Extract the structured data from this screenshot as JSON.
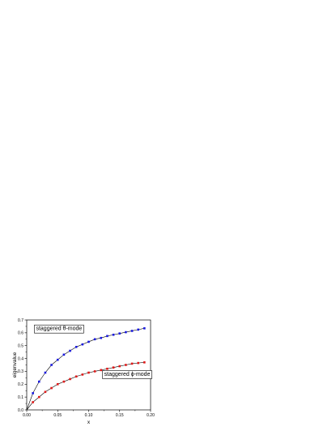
{
  "chart_data": {
    "type": "scatter",
    "xlabel": "x",
    "ylabel": "eigenvalue",
    "xlim": [
      0,
      0.2
    ],
    "ylim": [
      0,
      0.7
    ],
    "x_ticks": [
      "0.00",
      "0.05",
      "0.10",
      "0.15",
      "0.20"
    ],
    "y_ticks": [
      "0.0",
      "0.1",
      "0.2",
      "0.3",
      "0.4",
      "0.5",
      "0.6",
      "0.7"
    ],
    "grid": false,
    "series": [
      {
        "color": "#1a1adf",
        "line": true,
        "x": [
          0.01,
          0.02,
          0.03,
          0.04,
          0.05,
          0.06,
          0.07,
          0.08,
          0.09,
          0.1,
          0.11,
          0.12,
          0.13,
          0.14,
          0.15,
          0.16,
          0.17,
          0.18,
          0.19
        ],
        "y": [
          0.13,
          0.22,
          0.29,
          0.35,
          0.39,
          0.43,
          0.46,
          0.49,
          0.51,
          0.53,
          0.55,
          0.56,
          0.575,
          0.585,
          0.595,
          0.605,
          0.615,
          0.625,
          0.635
        ]
      },
      {
        "color": "#e01a1a",
        "line": true,
        "x": [
          0.01,
          0.02,
          0.03,
          0.04,
          0.05,
          0.06,
          0.07,
          0.08,
          0.09,
          0.1,
          0.11,
          0.12,
          0.13,
          0.14,
          0.15,
          0.16,
          0.17,
          0.18,
          0.19
        ],
        "y": [
          0.06,
          0.1,
          0.14,
          0.17,
          0.2,
          0.22,
          0.24,
          0.26,
          0.275,
          0.29,
          0.3,
          0.31,
          0.32,
          0.33,
          0.34,
          0.35,
          0.36,
          0.365,
          0.37
        ]
      }
    ],
    "annotations": [
      {
        "text": "staggered θ-mode",
        "at_x": 0.015,
        "at_y": 0.62
      },
      {
        "text": "staggered ϕ-mode",
        "at_x": 0.125,
        "at_y": 0.265
      }
    ]
  }
}
